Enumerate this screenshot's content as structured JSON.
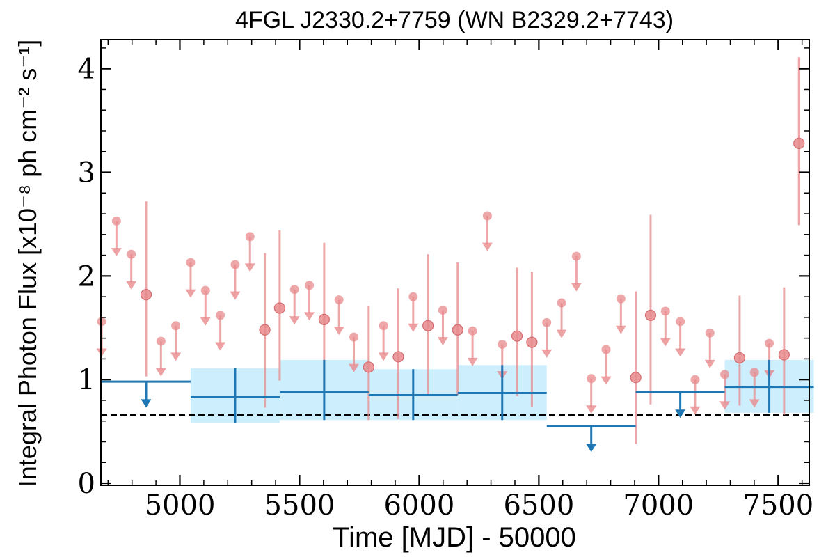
{
  "chart_data": {
    "type": "scatter",
    "title": "4FGL J2330.2+7759 (WN B2329.2+7743)",
    "xlabel": "Time [MJD] - 50000",
    "ylabel": "Integral Photon Flux [x10⁻⁸ ph cm⁻² s⁻¹]",
    "xlim": [
      4670,
      7630
    ],
    "ylim": [
      -0.02,
      4.28
    ],
    "x_ticks": [
      5000,
      5500,
      6000,
      6500,
      7000,
      7500
    ],
    "y_ticks": [
      0,
      1,
      2,
      3,
      4
    ],
    "grid": false,
    "reference_line": {
      "y": 0.66,
      "style": "dashed",
      "color": "#000000"
    },
    "colors": {
      "short_bins": "#e8898c",
      "long_bins": "#1f77b4",
      "long_bins_band": "#cdeefc"
    },
    "series": [
      {
        "kind": "short-bin upper limits",
        "points": [
          {
            "x": 4673,
            "y": 1.56,
            "to": 1.22
          },
          {
            "x": 4735,
            "y": 2.53,
            "to": 2.19
          },
          {
            "x": 4797,
            "y": 2.21,
            "to": 1.87
          },
          {
            "x": 4921,
            "y": 1.37,
            "to": 1.03
          },
          {
            "x": 4983,
            "y": 1.52,
            "to": 1.18
          },
          {
            "x": 5045,
            "y": 2.13,
            "to": 1.79
          },
          {
            "x": 5107,
            "y": 1.86,
            "to": 1.52
          },
          {
            "x": 5169,
            "y": 1.62,
            "to": 1.28
          },
          {
            "x": 5231,
            "y": 2.11,
            "to": 1.77
          },
          {
            "x": 5293,
            "y": 2.38,
            "to": 2.04
          },
          {
            "x": 5479,
            "y": 1.87,
            "to": 1.53
          },
          {
            "x": 5541,
            "y": 1.91,
            "to": 1.57
          },
          {
            "x": 5665,
            "y": 1.77,
            "to": 1.43
          },
          {
            "x": 5727,
            "y": 1.41,
            "to": 1.07
          },
          {
            "x": 5851,
            "y": 1.52,
            "to": 1.18
          },
          {
            "x": 5975,
            "y": 1.8,
            "to": 1.46
          },
          {
            "x": 6099,
            "y": 1.67,
            "to": 1.33
          },
          {
            "x": 6223,
            "y": 1.47,
            "to": 1.13
          },
          {
            "x": 6285,
            "y": 2.58,
            "to": 2.24
          },
          {
            "x": 6347,
            "y": 1.34,
            "to": 1.0
          },
          {
            "x": 6533,
            "y": 1.55,
            "to": 1.21
          },
          {
            "x": 6595,
            "y": 1.74,
            "to": 1.4
          },
          {
            "x": 6657,
            "y": 2.19,
            "to": 1.85
          },
          {
            "x": 6719,
            "y": 1.01,
            "to": 0.67
          },
          {
            "x": 6781,
            "y": 1.29,
            "to": 0.95
          },
          {
            "x": 6843,
            "y": 1.78,
            "to": 1.44
          },
          {
            "x": 7029,
            "y": 1.66,
            "to": 1.32
          },
          {
            "x": 7091,
            "y": 1.56,
            "to": 1.22
          },
          {
            "x": 7153,
            "y": 1.0,
            "to": 0.66
          },
          {
            "x": 7215,
            "y": 1.45,
            "to": 1.11
          },
          {
            "x": 7277,
            "y": 1.05,
            "to": 0.71
          },
          {
            "x": 7401,
            "y": 1.07,
            "to": 0.73
          },
          {
            "x": 7463,
            "y": 1.35,
            "to": 1.01
          }
        ]
      },
      {
        "kind": "short-bin detections",
        "points": [
          {
            "x": 4859,
            "y": 1.82,
            "lo": 1.03,
            "hi": 2.72
          },
          {
            "x": 5355,
            "y": 1.48,
            "lo": 0.73,
            "hi": 2.22
          },
          {
            "x": 5417,
            "y": 1.69,
            "lo": 0.99,
            "hi": 2.44
          },
          {
            "x": 5603,
            "y": 1.58,
            "lo": 0.9,
            "hi": 2.32
          },
          {
            "x": 5789,
            "y": 1.12,
            "lo": 0.61,
            "hi": 1.71
          },
          {
            "x": 5913,
            "y": 1.22,
            "lo": 0.62,
            "hi": 1.88
          },
          {
            "x": 6037,
            "y": 1.52,
            "lo": 0.85,
            "hi": 2.21
          },
          {
            "x": 6161,
            "y": 1.48,
            "lo": 0.85,
            "hi": 2.13
          },
          {
            "x": 6409,
            "y": 1.42,
            "lo": 0.84,
            "hi": 2.08
          },
          {
            "x": 6471,
            "y": 1.36,
            "lo": 0.74,
            "hi": 2.04
          },
          {
            "x": 6905,
            "y": 1.02,
            "lo": 0.38,
            "hi": 1.85
          },
          {
            "x": 6967,
            "y": 1.62,
            "lo": 0.76,
            "hi": 2.59
          },
          {
            "x": 7339,
            "y": 1.21,
            "lo": 0.75,
            "hi": 1.81
          },
          {
            "x": 7525,
            "y": 1.24,
            "lo": 0.66,
            "hi": 1.89
          },
          {
            "x": 7587,
            "y": 3.28,
            "lo": 2.49,
            "hi": 4.11
          }
        ]
      },
      {
        "kind": "long-bin measurements",
        "points": [
          {
            "x0": 5045,
            "x1": 5417,
            "x": 5231,
            "y": 0.83,
            "lo": 0.58,
            "hi": 1.11
          },
          {
            "x0": 5417,
            "x1": 5789,
            "x": 5603,
            "y": 0.88,
            "lo": 0.61,
            "hi": 1.19
          },
          {
            "x0": 5789,
            "x1": 6161,
            "x": 5975,
            "y": 0.85,
            "lo": 0.61,
            "hi": 1.1
          },
          {
            "x0": 6161,
            "x1": 6533,
            "x": 6347,
            "y": 0.87,
            "lo": 0.61,
            "hi": 1.14
          },
          {
            "x0": 7277,
            "x1": 7649,
            "x": 7463,
            "y": 0.93,
            "lo": 0.68,
            "hi": 1.19
          }
        ]
      },
      {
        "kind": "long-bin upper limits",
        "points": [
          {
            "x0": 4673,
            "x1": 5045,
            "x": 4859,
            "y": 0.98,
            "to": 0.73
          },
          {
            "x0": 6533,
            "x1": 6905,
            "x": 6719,
            "y": 0.55,
            "to": 0.3
          },
          {
            "x0": 6905,
            "x1": 7277,
            "x": 7091,
            "y": 0.88,
            "to": 0.63
          }
        ]
      }
    ]
  }
}
